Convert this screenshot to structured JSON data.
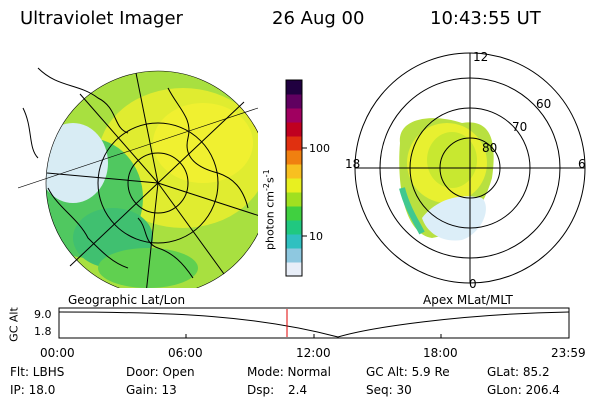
{
  "header": {
    "instrument": "Ultraviolet Imager",
    "date": "26 Aug 00",
    "time": "10:43:55 UT"
  },
  "colorbar": {
    "label": "photon cm",
    "label_exp1": "-2",
    "label_s": "s",
    "label_exp2": "-1",
    "tick_100": "100",
    "tick_10": "10",
    "colors": [
      "#e8eef8",
      "#8ec8e0",
      "#30c0c0",
      "#20c880",
      "#40d040",
      "#a0e020",
      "#e8f020",
      "#f8c020",
      "#f08010",
      "#e03010",
      "#c00020",
      "#a00060",
      "#600060",
      "#200040"
    ]
  },
  "left_map": {
    "caption": "Geographic Lat/Lon"
  },
  "right_map": {
    "caption": "Apex MLat/MLT",
    "lat_labels": [
      "80",
      "70",
      "60"
    ],
    "mlt_labels": {
      "top": "12",
      "left": "18",
      "right": "6",
      "bottom": "0"
    }
  },
  "timeline": {
    "ylabel": "GC Alt",
    "tick_top": "9.0",
    "tick_bottom": "1.8",
    "xticks": [
      "00:00",
      "06:00",
      "12:00",
      "18:00",
      "23:59"
    ],
    "marker_hour": 10.73
  },
  "info": {
    "filter": "Flt: LBHS",
    "door": "Door: Open",
    "mode": "Mode: Normal",
    "gc_alt": "GC Alt: 5.9 Re",
    "glat": "GLat: 85.2",
    "ip": "IP: 18.0",
    "gain": "Gain: 13",
    "dsp": "Dsp:",
    "dsp_val": "2.4",
    "seq": "Seq: 30",
    "glon": "GLon: 206.4"
  }
}
